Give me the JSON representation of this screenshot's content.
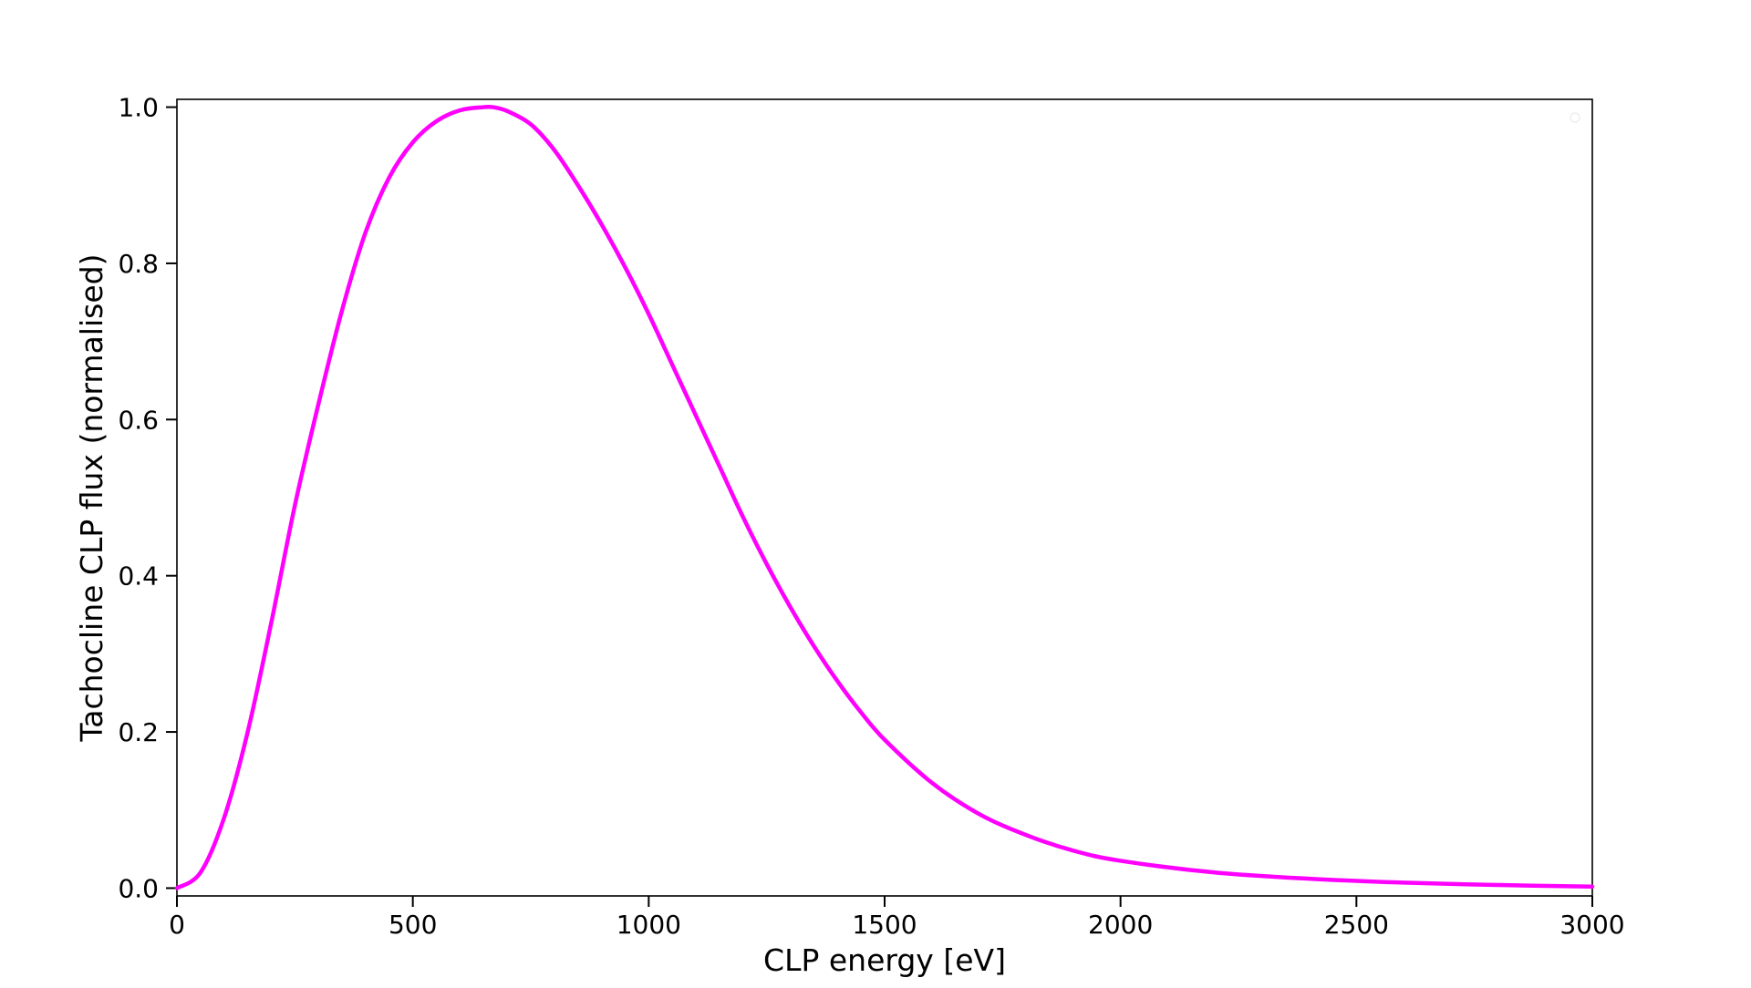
{
  "chart_data": {
    "type": "line",
    "title": "",
    "xlabel": "CLP energy [eV]",
    "ylabel": "Tachocline CLP flux (normalised)",
    "xlim": [
      0,
      3000
    ],
    "ylim": [
      -0.01,
      1.01
    ],
    "xticks": [
      0,
      500,
      1000,
      1500,
      2000,
      2500,
      3000
    ],
    "xtick_labels": [
      "0",
      "500",
      "1000",
      "1500",
      "2000",
      "2500",
      "3000"
    ],
    "yticks": [
      0.0,
      0.2,
      0.4,
      0.6,
      0.8,
      1.0
    ],
    "ytick_labels": [
      "0.0",
      "0.2",
      "0.4",
      "0.6",
      "0.8",
      "1.0"
    ],
    "grid": false,
    "legend": "top-right, empty",
    "series": [
      {
        "color": "#ff00ff",
        "x": [
          0,
          50,
          100,
          150,
          200,
          250,
          300,
          350,
          400,
          450,
          500,
          550,
          600,
          650,
          670,
          700,
          750,
          800,
          850,
          900,
          950,
          1000,
          1050,
          1100,
          1150,
          1200,
          1250,
          1300,
          1350,
          1400,
          1450,
          1500,
          1600,
          1700,
          1800,
          1900,
          2000,
          2200,
          2400,
          2600,
          2800,
          3000
        ],
        "y": [
          0.0,
          0.02,
          0.09,
          0.2,
          0.34,
          0.49,
          0.62,
          0.74,
          0.84,
          0.91,
          0.955,
          0.982,
          0.996,
          1.0,
          1.0,
          0.995,
          0.978,
          0.945,
          0.9,
          0.85,
          0.795,
          0.735,
          0.67,
          0.605,
          0.54,
          0.475,
          0.415,
          0.36,
          0.31,
          0.265,
          0.225,
          0.19,
          0.135,
          0.095,
          0.068,
          0.048,
          0.035,
          0.02,
          0.012,
          0.007,
          0.004,
          0.002
        ]
      }
    ]
  }
}
